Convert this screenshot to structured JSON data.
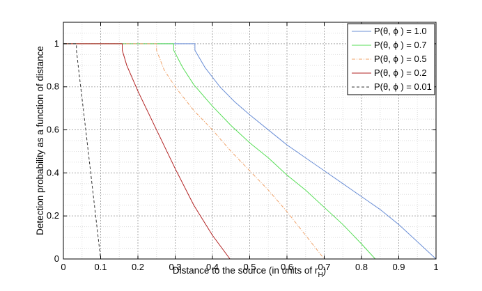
{
  "chart_data": {
    "type": "line",
    "xlabel": "Distance to the source (in units of r",
    "xlabel_sub": "H",
    "xlabel_close": ")",
    "ylabel": "Detection probability as a function of distance",
    "xlim": [
      0,
      1
    ],
    "ylim": [
      0,
      1.1
    ],
    "xticks": [
      "0",
      "0.1",
      "0.2",
      "0.3",
      "0.4",
      "0.5",
      "0.6",
      "0.7",
      "0.8",
      "0.9",
      "1"
    ],
    "yticks": [
      "0",
      "0.2",
      "0.4",
      "0.6",
      "0.8",
      "1"
    ],
    "grid": true,
    "legend_position": "top-right",
    "series": [
      {
        "name": "P(θ, ϕ ) = 1.0",
        "color": "#6b8fd6",
        "dash": "solid",
        "x": [
          0.0,
          0.353,
          0.353,
          0.38,
          0.42,
          0.46,
          0.5,
          0.55,
          0.6,
          0.65,
          0.7,
          0.75,
          0.8,
          0.85,
          0.9,
          0.95,
          1.0
        ],
        "y": [
          1.0,
          1.0,
          0.97,
          0.89,
          0.8,
          0.73,
          0.67,
          0.6,
          0.53,
          0.47,
          0.41,
          0.35,
          0.29,
          0.23,
          0.16,
          0.08,
          0.0
        ]
      },
      {
        "name": "P(θ, ϕ ) = 0.7",
        "color": "#55dd55",
        "dash": "solid",
        "x": [
          0.0,
          0.296,
          0.296,
          0.32,
          0.35,
          0.4,
          0.45,
          0.5,
          0.55,
          0.6,
          0.65,
          0.7,
          0.75,
          0.8,
          0.837
        ],
        "y": [
          1.0,
          1.0,
          0.97,
          0.89,
          0.81,
          0.71,
          0.62,
          0.54,
          0.47,
          0.39,
          0.32,
          0.24,
          0.16,
          0.07,
          0.0
        ]
      },
      {
        "name": "P(θ, ϕ ) = 0.5",
        "color": "#f0a36a",
        "dash": "dashdot",
        "x": [
          0.0,
          0.25,
          0.25,
          0.27,
          0.3,
          0.35,
          0.4,
          0.45,
          0.5,
          0.55,
          0.6,
          0.65,
          0.7
        ],
        "y": [
          1.0,
          1.0,
          0.97,
          0.88,
          0.8,
          0.69,
          0.6,
          0.5,
          0.41,
          0.32,
          0.22,
          0.11,
          0.0
        ]
      },
      {
        "name": "P(θ, ϕ ) = 0.2",
        "color": "#b22222",
        "dash": "solid",
        "x": [
          0.0,
          0.158,
          0.158,
          0.17,
          0.2,
          0.25,
          0.3,
          0.35,
          0.4,
          0.447
        ],
        "y": [
          1.0,
          1.0,
          0.97,
          0.9,
          0.78,
          0.6,
          0.42,
          0.25,
          0.11,
          0.0
        ]
      },
      {
        "name": "P(θ, ϕ ) = 0.01",
        "color": "#333333",
        "dash": "dashed",
        "x": [
          0.0,
          0.035,
          0.035,
          0.045,
          0.06,
          0.08,
          0.1
        ],
        "y": [
          1.0,
          1.0,
          0.97,
          0.82,
          0.6,
          0.3,
          0.0
        ]
      }
    ]
  }
}
